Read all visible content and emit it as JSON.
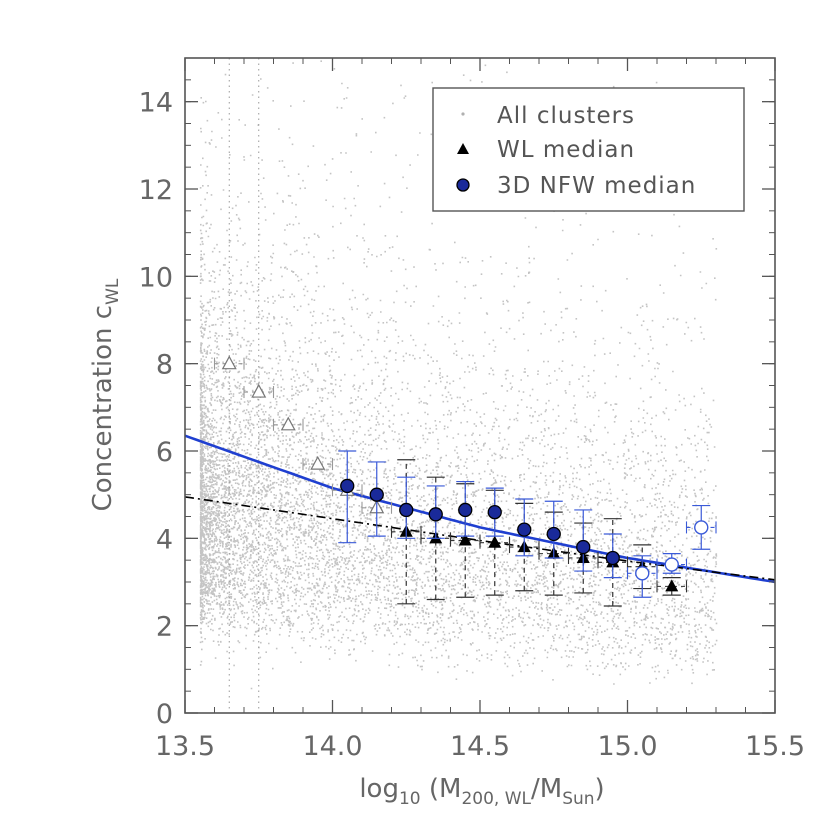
{
  "chart_data": {
    "type": "scatter",
    "title": "",
    "xlabel": {
      "prefix": "log",
      "prefix_sub": "10",
      "open": " (M",
      "sub1": "200, WL",
      "mid": "/M",
      "sub2": "Sun",
      "close": ")"
    },
    "ylabel": {
      "main": "Concentration c",
      "sub": "WL"
    },
    "xlim": [
      13.5,
      15.5
    ],
    "ylim": [
      0,
      15
    ],
    "x_ticks": [
      13.5,
      14.0,
      14.5,
      15.0,
      15.5
    ],
    "x_tick_labels": [
      "13.5",
      "14.0",
      "14.5",
      "15.0",
      "15.5"
    ],
    "y_ticks": [
      0,
      2,
      4,
      6,
      8,
      10,
      12,
      14
    ],
    "y_tick_labels": [
      "0",
      "2",
      "4",
      "6",
      "8",
      "10",
      "12",
      "14"
    ],
    "legend": {
      "position": "top-right",
      "entries": [
        "All clusters",
        "WL median",
        "3D NFW median"
      ]
    },
    "vertical_dotted_lines_x": [
      13.65,
      13.75
    ],
    "series": [
      {
        "name": "WL median",
        "marker": "triangle-filled",
        "color": "#000000",
        "points": [
          {
            "x": 14.25,
            "y": 4.15,
            "yerr_lo": 1.65,
            "yerr_hi": 1.65
          },
          {
            "x": 14.35,
            "y": 4.0,
            "yerr_lo": 1.4,
            "yerr_hi": 1.4
          },
          {
            "x": 14.45,
            "y": 3.95,
            "yerr_lo": 1.3,
            "yerr_hi": 1.3
          },
          {
            "x": 14.55,
            "y": 3.9,
            "yerr_lo": 1.2,
            "yerr_hi": 1.2
          },
          {
            "x": 14.65,
            "y": 3.8,
            "yerr_lo": 1.0,
            "yerr_hi": 1.0
          },
          {
            "x": 14.75,
            "y": 3.65,
            "yerr_lo": 0.95,
            "yerr_hi": 0.95
          },
          {
            "x": 14.85,
            "y": 3.55,
            "yerr_lo": 0.8,
            "yerr_hi": 0.8
          },
          {
            "x": 14.95,
            "y": 3.45,
            "yerr_lo": 1.0,
            "yerr_hi": 1.0
          },
          {
            "x": 15.05,
            "y": 3.35,
            "yerr_lo": 0.5,
            "yerr_hi": 0.5
          },
          {
            "x": 15.15,
            "y": 2.9,
            "yerr_lo": 0.2,
            "yerr_hi": 0.2
          }
        ]
      },
      {
        "name": "WL median (open)",
        "marker": "triangle-open",
        "color": "#888888",
        "points": [
          {
            "x": 13.65,
            "y": 8.0
          },
          {
            "x": 13.75,
            "y": 7.35
          },
          {
            "x": 13.85,
            "y": 6.6
          },
          {
            "x": 13.95,
            "y": 5.7
          },
          {
            "x": 14.05,
            "y": 5.1
          },
          {
            "x": 14.15,
            "y": 4.7
          }
        ]
      },
      {
        "name": "3D NFW median",
        "marker": "circle-filled",
        "color": "#1a2a9a",
        "points": [
          {
            "x": 14.05,
            "y": 5.2,
            "yerr_lo": 1.3,
            "yerr_hi": 0.8
          },
          {
            "x": 14.15,
            "y": 5.0,
            "yerr_lo": 0.95,
            "yerr_hi": 0.75
          },
          {
            "x": 14.25,
            "y": 4.65,
            "yerr_lo": 0.65,
            "yerr_hi": 0.75
          },
          {
            "x": 14.35,
            "y": 4.55,
            "yerr_lo": 0.55,
            "yerr_hi": 0.65
          },
          {
            "x": 14.45,
            "y": 4.65,
            "yerr_lo": 0.6,
            "yerr_hi": 0.65
          },
          {
            "x": 14.55,
            "y": 4.6,
            "yerr_lo": 0.55,
            "yerr_hi": 0.55
          },
          {
            "x": 14.65,
            "y": 4.2,
            "yerr_lo": 0.6,
            "yerr_hi": 0.7
          },
          {
            "x": 14.75,
            "y": 4.1,
            "yerr_lo": 0.55,
            "yerr_hi": 0.75
          },
          {
            "x": 14.85,
            "y": 3.8,
            "yerr_lo": 0.55,
            "yerr_hi": 0.85
          },
          {
            "x": 14.95,
            "y": 3.55,
            "yerr_lo": 0.45,
            "yerr_hi": 0.55
          }
        ]
      },
      {
        "name": "3D NFW median (open)",
        "marker": "circle-open",
        "color": "#3a5ad8",
        "points": [
          {
            "x": 15.05,
            "y": 3.2,
            "yerr_lo": 0.55,
            "yerr_hi": 0.4
          },
          {
            "x": 15.15,
            "y": 3.4,
            "yerr_lo": 0.2,
            "yerr_hi": 0.25
          },
          {
            "x": 15.25,
            "y": 4.25,
            "yerr_lo": 0.5,
            "yerr_hi": 0.5
          }
        ]
      },
      {
        "name": "NFW fit",
        "type": "line",
        "style": "solid",
        "color": "#1f3fd0",
        "x": [
          13.5,
          14.0,
          14.5,
          15.0,
          15.5
        ],
        "y": [
          6.35,
          5.15,
          4.25,
          3.55,
          3.0
        ]
      },
      {
        "name": "WL fit",
        "type": "line",
        "style": "dash-dot",
        "color": "#000000",
        "x": [
          13.5,
          14.0,
          14.5,
          15.0,
          15.5
        ],
        "y": [
          4.95,
          4.45,
          3.95,
          3.48,
          3.05
        ]
      }
    ],
    "colors": {
      "scatter": "#c4c4c4",
      "axis": "#555555",
      "tick_text": "#666666",
      "nfw": "#1a2a9a",
      "nfw_fit": "#1f3fd0"
    }
  }
}
